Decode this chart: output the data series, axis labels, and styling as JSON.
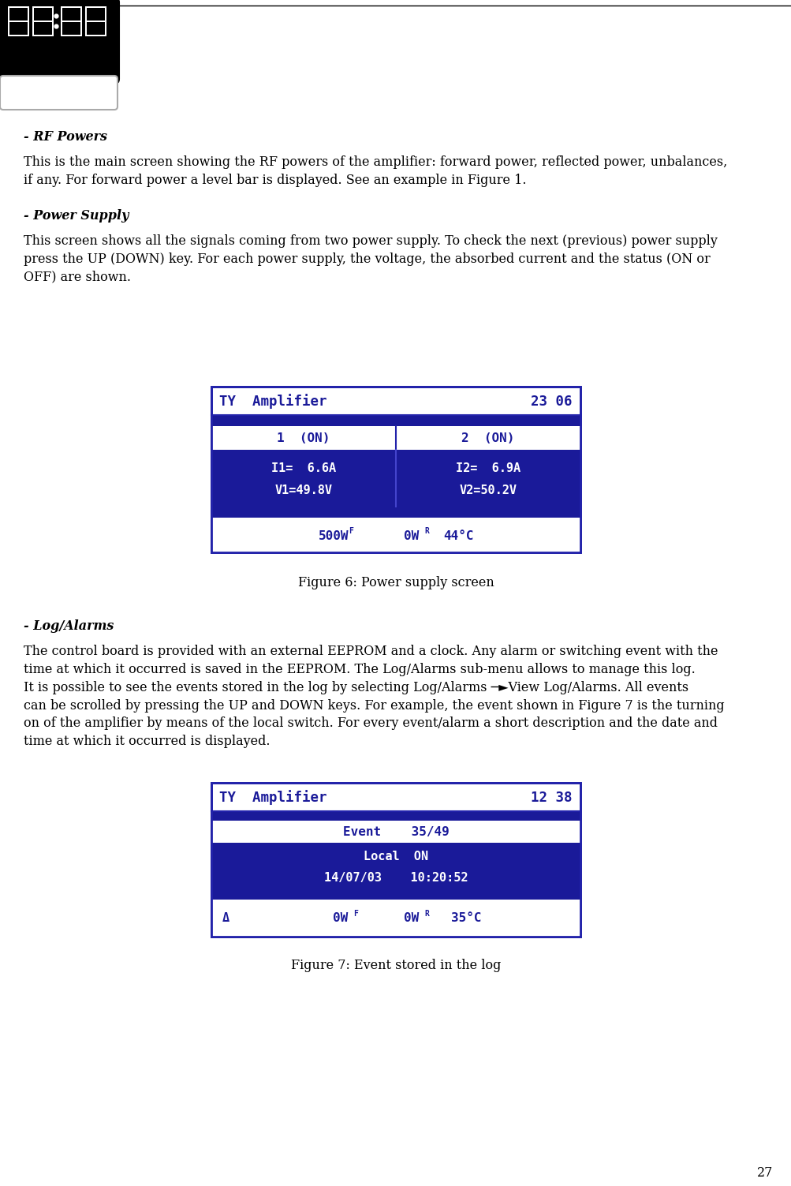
{
  "page_number": "27",
  "bg_color": "#ffffff",
  "text_color": "#000000",
  "section1_title": "- RF Powers",
  "section1_body": "This is the main screen showing the RF powers of the amplifier: forward power, reflected power, unbalances,\nif any. For forward power a level bar is displayed. See an example in Figure 1.",
  "section2_title": "- Power Supply",
  "section2_body": "This screen shows all the signals coming from two power supply. To check the next (previous) power supply\npress the UP (DOWN) key. For each power supply, the voltage, the absorbed current and the status (ON or\nOFF) are shown.",
  "fig6_caption": "Figure 6: Power supply screen",
  "section3_title": "- Log/Alarms",
  "section3_body_line1": "The control board is provided with an external EEPROM and a clock. Any alarm or switching event with the",
  "section3_body_line2": "time at which it occurred is saved in the EEPROM. The Log/Alarms sub-menu allows to manage this log.",
  "section3_body_line3": "It is possible to see the events stored in the log by selecting Log/Alarms ─►View Log/Alarms. All events",
  "section3_body_line4": "can be scrolled by pressing the UP and DOWN keys. For example, the event shown in Figure 7 is the turning",
  "section3_body_line5": "on of the amplifier by means of the local switch. For every event/alarm a short description and the date and",
  "section3_body_line6": "time at which it occurred is displayed.",
  "fig7_caption": "Figure 7: Event stored in the log",
  "display_blue": "#1a1a99",
  "display_dark_blue": "#1a1a99",
  "display_border": "#2222aa",
  "display_text_white": "#ffffff",
  "display_text_blue": "#2222bb"
}
